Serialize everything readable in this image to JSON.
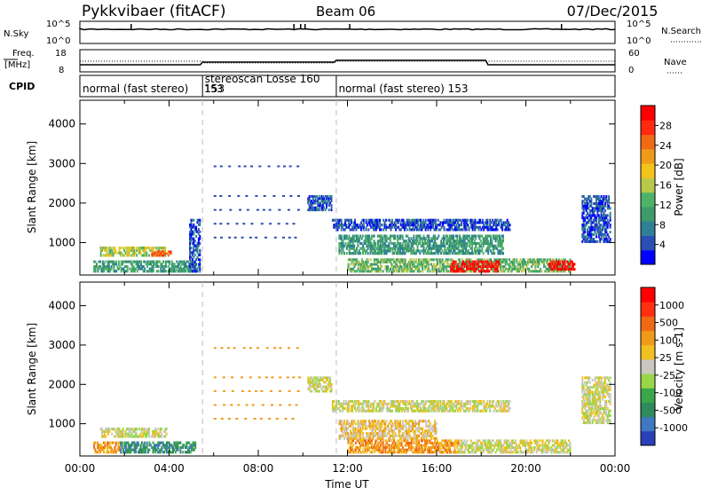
{
  "header": {
    "station": "Pykkvibaer (fitACF)",
    "beam": "Beam 06",
    "date": "07/Dec/2015"
  },
  "top_panel": {
    "left_label": "N.Sky",
    "right_label": "N.Search",
    "left_ticks": [
      "10^5",
      "10^0"
    ],
    "right_ticks": [
      "10^5",
      "10^0"
    ]
  },
  "freq_panel": {
    "left_label_1": "Freq.",
    "left_label_2": "[MHz]",
    "right_label": "Nave",
    "left_ticks": [
      "18",
      "8"
    ],
    "right_ticks": [
      "60",
      "0"
    ]
  },
  "cpid": {
    "label": "CPID",
    "segments": [
      {
        "name": "normal (fast stereo) 153",
        "start_h": 0.0,
        "end_h": 5.5
      },
      {
        "name": "stereoscan Losse 160",
        "start_h": 5.5,
        "end_h": 11.5
      },
      {
        "name": "normal (fast stereo) 153",
        "start_h": 11.5,
        "end_h": 24.0
      }
    ],
    "texts": [
      {
        "text": "normal (fast stereo)",
        "at_h": 0.12
      },
      {
        "text": "153",
        "at_h": 5.6
      },
      {
        "text": "stereoscan Losse 160",
        "at_h": 5.6
      },
      {
        "text": "153",
        "at_h": 5.6
      },
      {
        "text": "normal (fast stereo) 153",
        "at_h": 11.6
      }
    ]
  },
  "chart_data": [
    {
      "type": "heatmap",
      "title": "Power",
      "ylabel": "Slant Range [km]",
      "xlim_hours": [
        0,
        24
      ],
      "ylim": [
        180,
        4600
      ],
      "yticks": [
        1000,
        2000,
        3000,
        4000
      ],
      "colorbar": {
        "label": "Power [dB]",
        "ticks": [
          "28",
          "24",
          "20",
          "16",
          "12",
          "8",
          "4"
        ],
        "colors": [
          "#0000ff",
          "#2a4fb4",
          "#2f7f96",
          "#3f9a69",
          "#4fb26a",
          "#b9c84a",
          "#f2c31a",
          "#f09a1a",
          "#f06a14",
          "#ff2a10",
          "#ff0000"
        ]
      },
      "echo_regions": [
        {
          "x0": 0.9,
          "x1": 3.9,
          "y0": 650,
          "y1": 900,
          "level": 5
        },
        {
          "x0": 0.6,
          "x1": 5.2,
          "y0": 250,
          "y1": 550,
          "level": 3
        },
        {
          "x0": 3.2,
          "x1": 4.1,
          "y0": 650,
          "y1": 800,
          "level": 8
        },
        {
          "x0": 4.9,
          "x1": 5.4,
          "y0": 250,
          "y1": 1600,
          "level": 1
        },
        {
          "x0": 10.2,
          "x1": 11.3,
          "y0": 1800,
          "y1": 2200,
          "level": 1
        },
        {
          "x0": 11.3,
          "x1": 19.3,
          "y0": 1300,
          "y1": 1600,
          "level": 1
        },
        {
          "x0": 11.6,
          "x1": 19.0,
          "y0": 700,
          "y1": 1200,
          "level": 3
        },
        {
          "x0": 12.0,
          "x1": 22.0,
          "y0": 250,
          "y1": 600,
          "level": 4
        },
        {
          "x0": 16.6,
          "x1": 18.8,
          "y0": 250,
          "y1": 550,
          "level": 10
        },
        {
          "x0": 21.0,
          "x1": 22.2,
          "y0": 300,
          "y1": 550,
          "level": 10
        },
        {
          "x0": 22.5,
          "x1": 23.8,
          "y0": 1000,
          "y1": 2200,
          "level": 1
        }
      ]
    },
    {
      "type": "heatmap",
      "title": "Velocity",
      "ylabel": "Slant Range [km]",
      "xlabel": "Time UT",
      "xlim_hours": [
        0,
        24
      ],
      "xticks": [
        "00:00",
        "04:00",
        "08:00",
        "12:00",
        "16:00",
        "20:00",
        "00:00"
      ],
      "ylim": [
        180,
        4600
      ],
      "yticks": [
        1000,
        2000,
        3000,
        4000
      ],
      "colorbar": {
        "label": "Velocity [m s-1]",
        "ticks": [
          "1000",
          "500",
          "100",
          "25",
          "-25",
          "-100",
          "-500",
          "-1000"
        ],
        "colors": [
          "#2b3fb8",
          "#3d78c0",
          "#2f8a5c",
          "#3aa64a",
          "#9ad64a",
          "#c8c8c0",
          "#f0c020",
          "#f09a1a",
          "#f06a14",
          "#ff3010",
          "#ff0000"
        ]
      },
      "echo_regions": [
        {
          "x0": 0.9,
          "x1": 3.9,
          "y0": 650,
          "y1": 900,
          "level": 5
        },
        {
          "x0": 0.6,
          "x1": 1.8,
          "y0": 250,
          "y1": 550,
          "level": 7
        },
        {
          "x0": 1.8,
          "x1": 5.2,
          "y0": 250,
          "y1": 550,
          "level": 2
        },
        {
          "x0": 10.2,
          "x1": 11.3,
          "y0": 1800,
          "y1": 2200,
          "level": 5
        },
        {
          "x0": 11.3,
          "x1": 19.3,
          "y0": 1300,
          "y1": 1600,
          "level": 5
        },
        {
          "x0": 11.6,
          "x1": 16.0,
          "y0": 600,
          "y1": 1100,
          "level": 6
        },
        {
          "x0": 12.0,
          "x1": 17.0,
          "y0": 250,
          "y1": 600,
          "level": 7
        },
        {
          "x0": 17.0,
          "x1": 22.0,
          "y0": 250,
          "y1": 600,
          "level": 5
        },
        {
          "x0": 22.5,
          "x1": 23.8,
          "y0": 1000,
          "y1": 2200,
          "level": 5
        }
      ]
    }
  ]
}
